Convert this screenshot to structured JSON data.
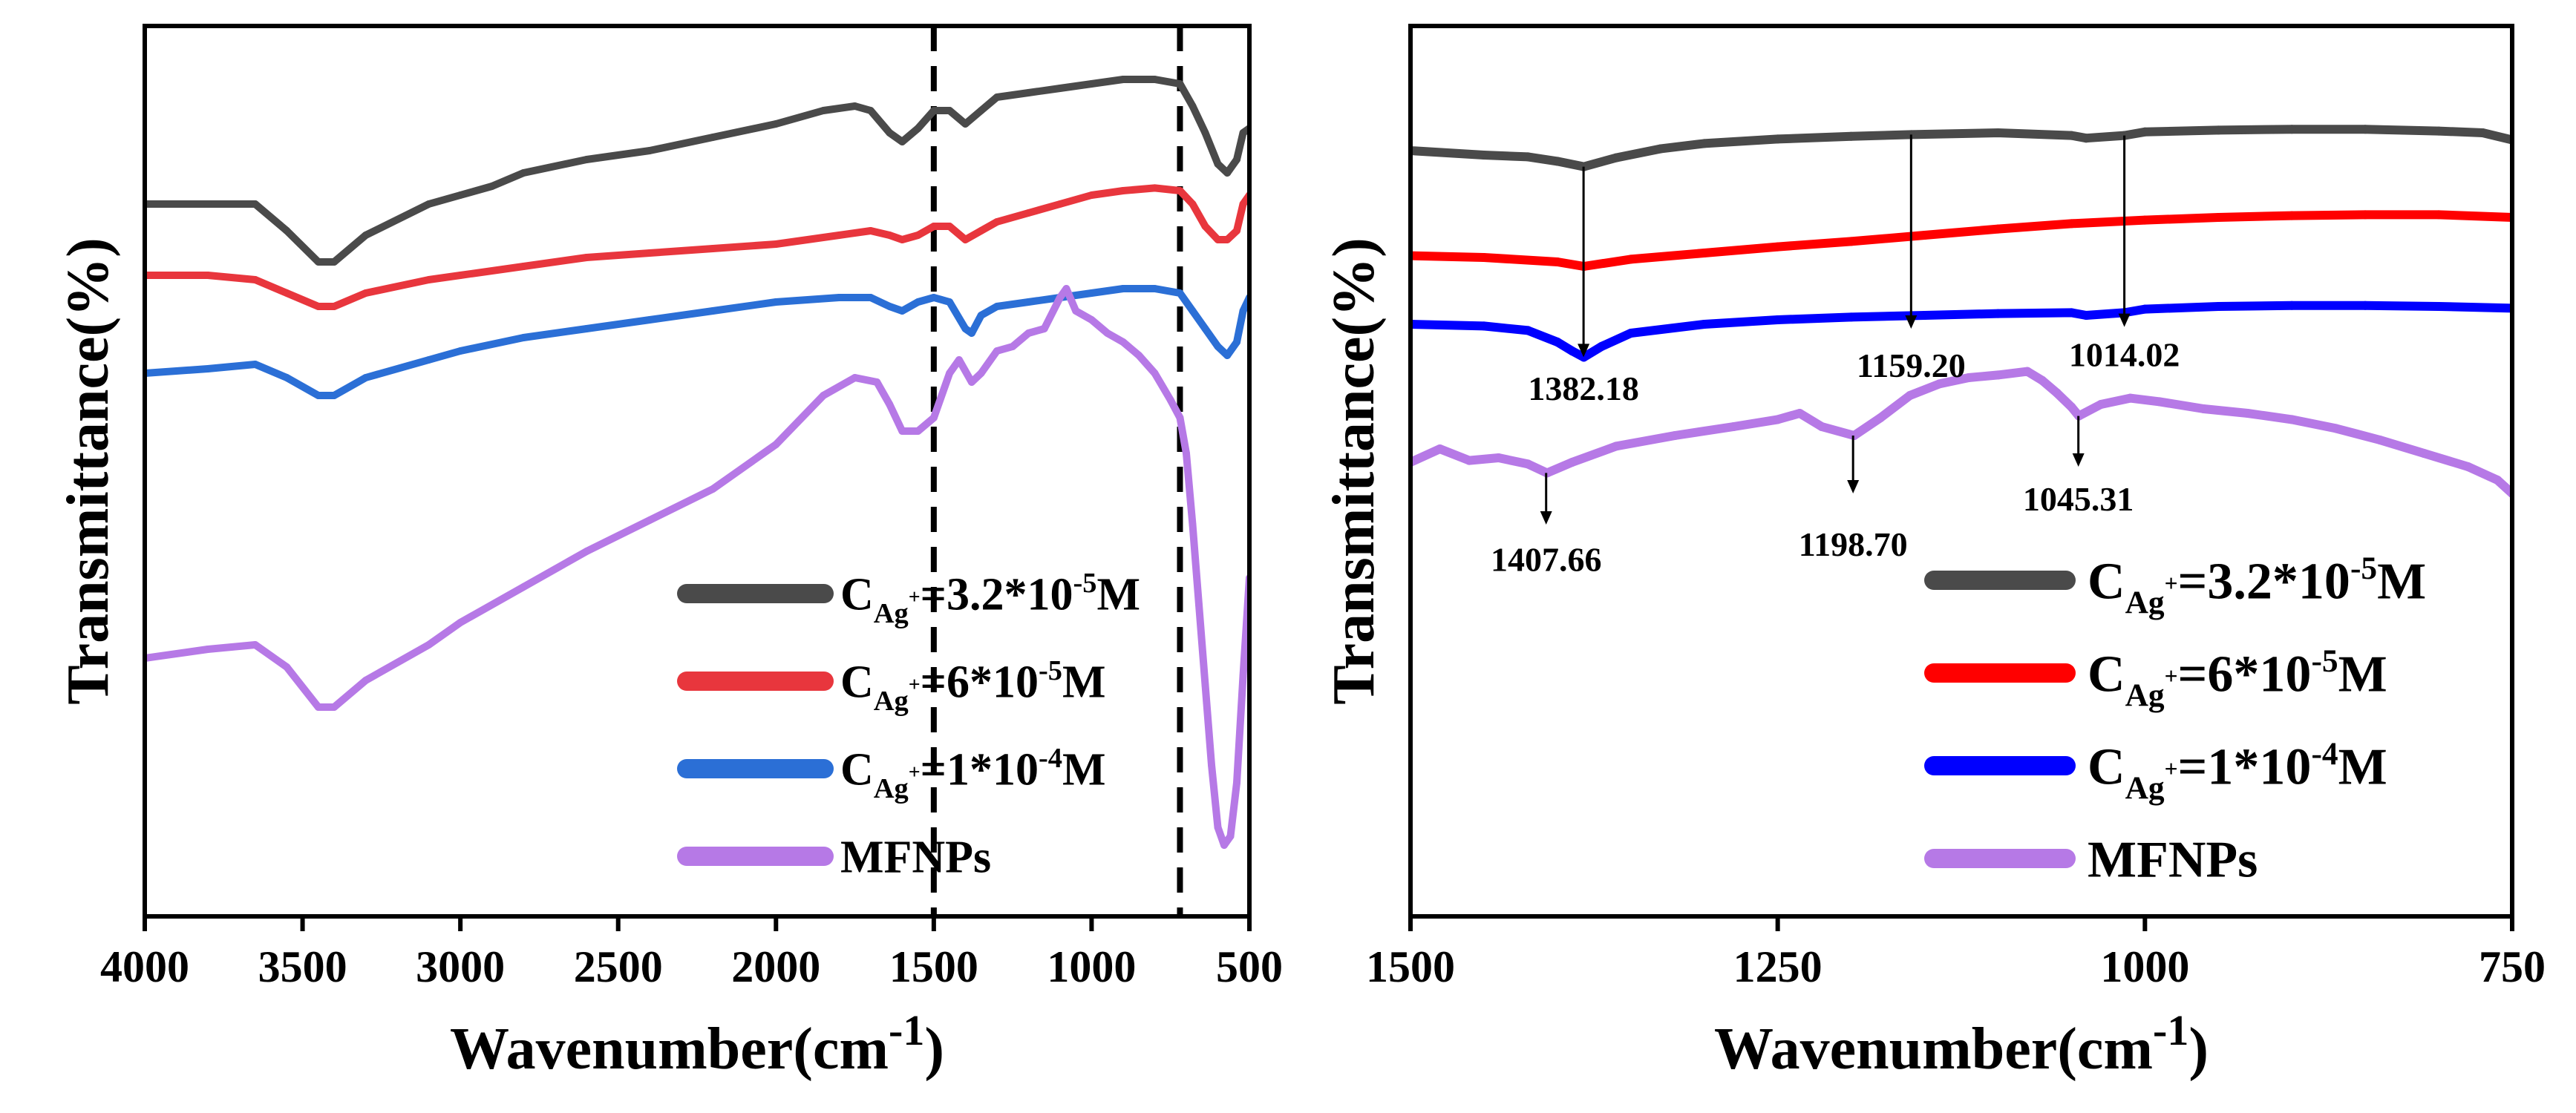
{
  "chart_data": [
    {
      "type": "line",
      "xlabel": "Wavenumber(cm",
      "xlabel_sup": "-1",
      "xlabel_close": ")",
      "ylabel": "Transmittance(%)",
      "xlim": [
        4000,
        500
      ],
      "x_ticks": [
        4000,
        3500,
        3000,
        2500,
        2000,
        1500,
        1000,
        500
      ],
      "x_tick_labels": [
        "4000",
        "3500",
        "3000",
        "2500",
        "2000",
        "1500",
        "1000",
        "500"
      ],
      "y_ticks_shown": false,
      "dashed_lines_x": [
        1500,
        720
      ],
      "legend_position": "bottom-right",
      "series": [
        {
          "name": "C_Ag+=3.2*10-5M",
          "color": "#4a4a4a",
          "legend": {
            "base": "C",
            "sub": "Ag",
            "subsup": "+",
            "eq": "=3.2*10",
            "sup": "-5",
            "unit": "M"
          },
          "x": [
            4000,
            3800,
            3650,
            3550,
            3450,
            3400,
            3300,
            3100,
            3000,
            2900,
            2800,
            2600,
            2400,
            2200,
            2000,
            1850,
            1750,
            1700,
            1640,
            1600,
            1550,
            1500,
            1450,
            1400,
            1350,
            1300,
            1200,
            1100,
            1000,
            900,
            800,
            720,
            680,
            640,
            600,
            570,
            540,
            520,
            500
          ],
          "y": [
            0.8,
            0.8,
            0.8,
            0.77,
            0.735,
            0.735,
            0.765,
            0.8,
            0.81,
            0.82,
            0.835,
            0.85,
            0.86,
            0.875,
            0.89,
            0.905,
            0.91,
            0.905,
            0.88,
            0.87,
            0.885,
            0.905,
            0.905,
            0.89,
            0.905,
            0.92,
            0.925,
            0.93,
            0.935,
            0.94,
            0.94,
            0.935,
            0.91,
            0.88,
            0.845,
            0.835,
            0.85,
            0.88,
            0.885
          ]
        },
        {
          "name": "C_Ag+=6*10-5M",
          "color": "#e8363d",
          "legend": {
            "base": "C",
            "sub": "Ag",
            "subsup": "+",
            "eq": "=6*10",
            "sup": "-5",
            "unit": "M"
          },
          "x": [
            4000,
            3800,
            3650,
            3550,
            3450,
            3400,
            3300,
            3100,
            3000,
            2800,
            2600,
            2400,
            2200,
            2000,
            1800,
            1700,
            1640,
            1600,
            1550,
            1500,
            1450,
            1400,
            1350,
            1300,
            1200,
            1100,
            1000,
            900,
            800,
            720,
            680,
            640,
            600,
            570,
            540,
            520,
            500
          ],
          "y": [
            0.72,
            0.72,
            0.715,
            0.7,
            0.685,
            0.685,
            0.7,
            0.715,
            0.72,
            0.73,
            0.74,
            0.745,
            0.75,
            0.755,
            0.765,
            0.77,
            0.765,
            0.76,
            0.765,
            0.775,
            0.775,
            0.76,
            0.77,
            0.78,
            0.79,
            0.8,
            0.81,
            0.815,
            0.818,
            0.815,
            0.8,
            0.775,
            0.76,
            0.76,
            0.77,
            0.8,
            0.81
          ]
        },
        {
          "name": "C_Ag+=1*10-4M",
          "color": "#2b6fd6",
          "legend": {
            "base": "C",
            "sub": "Ag",
            "subsup": "+",
            "eq": "=1*10",
            "sup": "-4",
            "unit": "M"
          },
          "x": [
            4000,
            3800,
            3650,
            3550,
            3450,
            3400,
            3300,
            3100,
            3000,
            2800,
            2600,
            2400,
            2200,
            2000,
            1800,
            1700,
            1640,
            1600,
            1550,
            1500,
            1450,
            1400,
            1380,
            1350,
            1300,
            1200,
            1100,
            1000,
            900,
            800,
            720,
            680,
            640,
            600,
            570,
            540,
            520,
            500
          ],
          "y": [
            0.61,
            0.615,
            0.62,
            0.605,
            0.585,
            0.585,
            0.605,
            0.625,
            0.635,
            0.65,
            0.66,
            0.67,
            0.68,
            0.69,
            0.695,
            0.695,
            0.685,
            0.68,
            0.69,
            0.695,
            0.69,
            0.66,
            0.655,
            0.675,
            0.685,
            0.69,
            0.695,
            0.7,
            0.705,
            0.705,
            0.7,
            0.68,
            0.66,
            0.64,
            0.63,
            0.645,
            0.68,
            0.695
          ]
        },
        {
          "name": "MFNPs",
          "color": "#b679e6",
          "legend": {
            "base": "MFNPs",
            "sub": "",
            "subsup": "",
            "eq": "",
            "sup": "",
            "unit": ""
          },
          "x": [
            4000,
            3800,
            3650,
            3550,
            3450,
            3400,
            3300,
            3100,
            3000,
            2800,
            2600,
            2400,
            2200,
            2000,
            1850,
            1750,
            1680,
            1640,
            1600,
            1550,
            1500,
            1450,
            1420,
            1380,
            1350,
            1300,
            1250,
            1200,
            1150,
            1100,
            1080,
            1050,
            1000,
            950,
            900,
            850,
            800,
            750,
            720,
            700,
            680,
            660,
            640,
            620,
            600,
            580,
            560,
            540,
            520,
            500
          ],
          "y": [
            0.29,
            0.3,
            0.305,
            0.28,
            0.235,
            0.235,
            0.265,
            0.305,
            0.33,
            0.37,
            0.41,
            0.445,
            0.48,
            0.53,
            0.585,
            0.605,
            0.6,
            0.575,
            0.545,
            0.545,
            0.56,
            0.61,
            0.625,
            0.6,
            0.61,
            0.635,
            0.64,
            0.655,
            0.66,
            0.695,
            0.705,
            0.68,
            0.67,
            0.655,
            0.645,
            0.63,
            0.61,
            0.58,
            0.56,
            0.52,
            0.44,
            0.35,
            0.26,
            0.17,
            0.1,
            0.08,
            0.09,
            0.15,
            0.27,
            0.38
          ]
        }
      ]
    },
    {
      "type": "line",
      "xlabel": "Wavenumber(cm",
      "xlabel_sup": "-1",
      "xlabel_close": ")",
      "ylabel": "Transmittance(%)",
      "xlim": [
        1500,
        750
      ],
      "x_ticks": [
        1500,
        1250,
        1000,
        750
      ],
      "x_tick_labels": [
        "1500",
        "1250",
        "1000",
        "750"
      ],
      "y_ticks_shown": false,
      "legend_position": "bottom-right",
      "series": [
        {
          "name": "C_Ag+=3.2*10-5M",
          "color": "#4a4a4a",
          "legend": {
            "base": "C",
            "sub": "Ag",
            "subsup": "+",
            "eq": "=3.2*10",
            "sup": "-5",
            "unit": "M"
          },
          "x": [
            1500,
            1450,
            1420,
            1400,
            1382,
            1360,
            1330,
            1300,
            1250,
            1200,
            1159,
            1100,
            1050,
            1040,
            1014,
            1000,
            950,
            900,
            850,
            800,
            770,
            750
          ],
          "y": [
            0.86,
            0.855,
            0.853,
            0.848,
            0.842,
            0.852,
            0.862,
            0.868,
            0.873,
            0.876,
            0.878,
            0.88,
            0.877,
            0.874,
            0.877,
            0.881,
            0.883,
            0.884,
            0.884,
            0.882,
            0.88,
            0.872
          ]
        },
        {
          "name": "C_Ag+=6*10-5M",
          "color": "#ff0000",
          "legend": {
            "base": "C",
            "sub": "Ag",
            "subsup": "+",
            "eq": "=6*10",
            "sup": "-5",
            "unit": "M"
          },
          "x": [
            1500,
            1450,
            1400,
            1382,
            1350,
            1300,
            1250,
            1200,
            1150,
            1100,
            1050,
            1000,
            950,
            900,
            850,
            800,
            750
          ],
          "y": [
            0.742,
            0.74,
            0.735,
            0.73,
            0.738,
            0.745,
            0.752,
            0.758,
            0.765,
            0.772,
            0.778,
            0.782,
            0.785,
            0.787,
            0.788,
            0.788,
            0.785
          ]
        },
        {
          "name": "C_Ag+=1*10-4M",
          "color": "#0000ff",
          "legend": {
            "base": "C",
            "sub": "Ag",
            "subsup": "+",
            "eq": "=1*10",
            "sup": "-4",
            "unit": "M"
          },
          "x": [
            1500,
            1450,
            1420,
            1400,
            1390,
            1382,
            1370,
            1350,
            1300,
            1250,
            1200,
            1150,
            1100,
            1050,
            1040,
            1014,
            1000,
            950,
            900,
            850,
            800,
            750
          ],
          "y": [
            0.665,
            0.663,
            0.658,
            0.645,
            0.635,
            0.628,
            0.64,
            0.655,
            0.665,
            0.67,
            0.673,
            0.675,
            0.677,
            0.678,
            0.675,
            0.678,
            0.682,
            0.685,
            0.686,
            0.686,
            0.685,
            0.683
          ]
        },
        {
          "name": "MFNPs",
          "color": "#b679e6",
          "legend": {
            "base": "MFNPs",
            "sub": "",
            "subsup": "",
            "eq": "",
            "sup": "",
            "unit": ""
          },
          "x": [
            1500,
            1480,
            1460,
            1440,
            1420,
            1407,
            1390,
            1360,
            1320,
            1280,
            1250,
            1235,
            1220,
            1198,
            1180,
            1160,
            1140,
            1120,
            1100,
            1080,
            1070,
            1060,
            1050,
            1045,
            1030,
            1010,
            990,
            960,
            930,
            900,
            870,
            840,
            810,
            780,
            760,
            750
          ],
          "y": [
            0.51,
            0.525,
            0.512,
            0.515,
            0.508,
            0.498,
            0.51,
            0.528,
            0.54,
            0.55,
            0.558,
            0.565,
            0.55,
            0.54,
            0.56,
            0.585,
            0.598,
            0.605,
            0.608,
            0.612,
            0.602,
            0.588,
            0.572,
            0.562,
            0.575,
            0.582,
            0.578,
            0.57,
            0.565,
            0.558,
            0.548,
            0.535,
            0.52,
            0.505,
            0.49,
            0.475
          ]
        }
      ],
      "annotations": [
        {
          "label": "1382.18",
          "x": 1382.18,
          "from_y": 0.842,
          "to_y": 0.628,
          "label_y": 0.58
        },
        {
          "label": "1159.20",
          "x": 1159.2,
          "from_y": 0.878,
          "to_y": 0.66,
          "label_y": 0.606
        },
        {
          "label": "1014.02",
          "x": 1014.02,
          "from_y": 0.877,
          "to_y": 0.662,
          "label_y": 0.618
        },
        {
          "label": "1407.66",
          "x": 1407.66,
          "from_y": 0.498,
          "to_y": 0.44,
          "label_y": 0.388
        },
        {
          "label": "1198.70",
          "x": 1198.7,
          "from_y": 0.54,
          "to_y": 0.475,
          "label_y": 0.405
        },
        {
          "label": "1045.31",
          "x": 1045.31,
          "from_y": 0.562,
          "to_y": 0.505,
          "label_y": 0.456
        }
      ]
    }
  ]
}
